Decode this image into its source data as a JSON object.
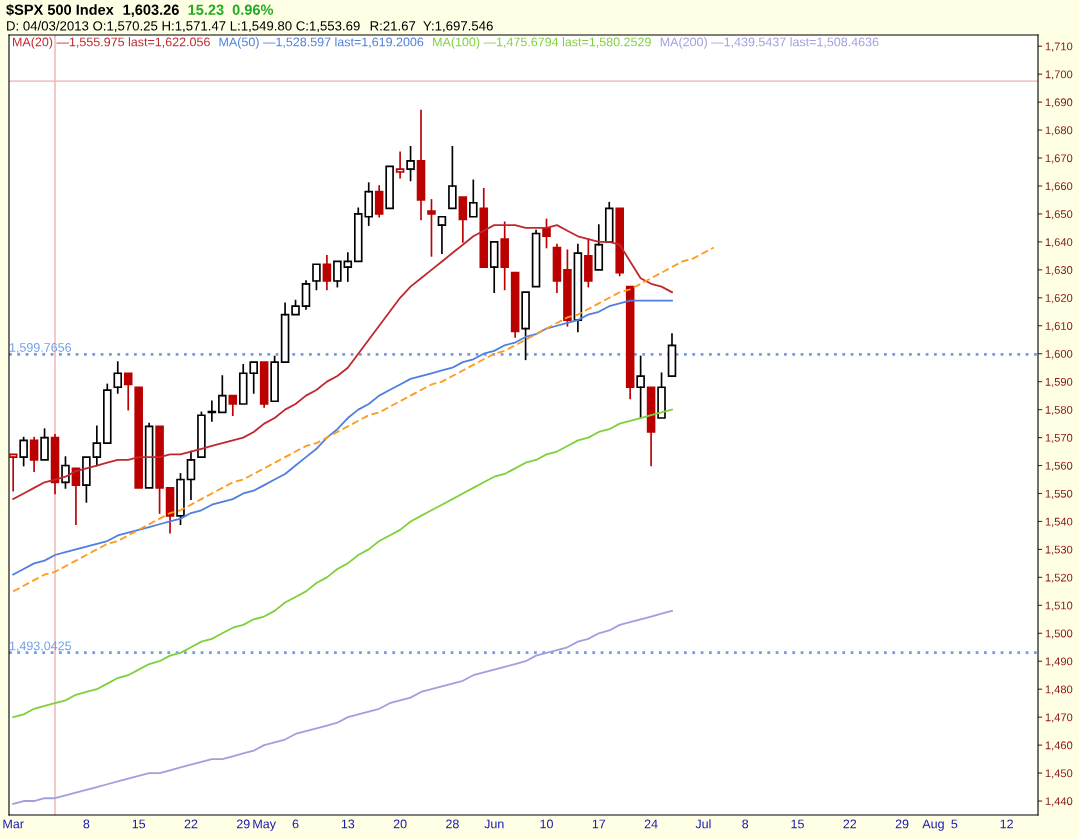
{
  "chart_data": {
    "type": "candlestick",
    "title": "$SPX 500 Index",
    "subtitle": "1,603.26",
    "annotations": [
      "15.23",
      "0.96%",
      "D: 04/03/2013 O:1,570.25 H:1,571.47 L:1,549.80 C:1,553.69",
      "R:21.67  Y:1,697.546"
    ],
    "categories": [
      "Mar",
      null,
      null,
      null,
      null,
      null,
      null,
      "8",
      null,
      null,
      null,
      null,
      "15",
      null,
      null,
      null,
      null,
      "22",
      null,
      null,
      null,
      null,
      "29",
      null,
      "May",
      null,
      null,
      "6",
      null,
      null,
      null,
      null,
      "13",
      null,
      null,
      null,
      null,
      "20",
      null,
      null,
      null,
      null,
      "28",
      null,
      null,
      null,
      "Jun",
      null,
      null,
      null,
      null,
      "10",
      null,
      null,
      null,
      null,
      "17",
      null,
      null,
      null,
      null,
      "24",
      null,
      null,
      null,
      null,
      "Jul",
      null,
      null,
      null,
      "8",
      null,
      null,
      null,
      null,
      "15",
      null,
      null,
      null,
      null,
      "22",
      null,
      null,
      null,
      null,
      "29",
      null,
      null,
      "Aug",
      null,
      "5",
      null,
      null,
      null,
      null,
      "12",
      null,
      null,
      null
    ],
    "ohlc": [
      [
        1563,
        1564,
        1551,
        1564
      ],
      [
        1563,
        1570,
        1560,
        1569
      ],
      [
        1569,
        1570,
        1558,
        1562
      ],
      [
        1562,
        1573,
        1562,
        1570
      ],
      [
        1570,
        1571,
        1550,
        1554
      ],
      [
        1554,
        1563,
        1552,
        1560
      ],
      [
        1559,
        1559,
        1539,
        1553
      ],
      [
        1553,
        1563,
        1547,
        1563
      ],
      [
        1563,
        1574,
        1560,
        1568
      ],
      [
        1568,
        1589,
        1568,
        1587
      ],
      [
        1588,
        1597,
        1586,
        1593
      ],
      [
        1593,
        1593,
        1580,
        1589
      ],
      [
        1588,
        1588,
        1552,
        1552
      ],
      [
        1552,
        1575,
        1552,
        1574
      ],
      [
        1574,
        1574,
        1543,
        1552
      ],
      [
        1552,
        1552,
        1536,
        1542
      ],
      [
        1542,
        1557,
        1539,
        1555
      ],
      [
        1555,
        1565,
        1548,
        1562
      ],
      [
        1563,
        1579,
        1563,
        1578
      ],
      [
        1579,
        1583,
        1576,
        1579
      ],
      [
        1579,
        1592,
        1579,
        1585
      ],
      [
        1585,
        1585,
        1578,
        1582
      ],
      [
        1582,
        1596,
        1582,
        1593
      ],
      [
        1593,
        1597,
        1586,
        1597
      ],
      [
        1597,
        1597,
        1581,
        1582
      ],
      [
        1583,
        1599,
        1583,
        1597
      ],
      [
        1597,
        1618,
        1597,
        1614
      ],
      [
        1614,
        1619,
        1614,
        1617
      ],
      [
        1617,
        1626,
        1616,
        1625
      ],
      [
        1626,
        1632,
        1623,
        1632
      ],
      [
        1632,
        1635,
        1623,
        1626
      ],
      [
        1626,
        1633,
        1624,
        1633
      ],
      [
        1631,
        1636,
        1626,
        1633
      ],
      [
        1633,
        1652,
        1633,
        1650
      ],
      [
        1649,
        1661,
        1646,
        1658
      ],
      [
        1658,
        1660,
        1649,
        1650
      ],
      [
        1652,
        1667,
        1652,
        1667
      ],
      [
        1665,
        1672,
        1663,
        1666
      ],
      [
        1666,
        1674,
        1662,
        1669
      ],
      [
        1669,
        1687,
        1648,
        1655
      ],
      [
        1651,
        1655,
        1635,
        1650
      ],
      [
        1646,
        1649,
        1636,
        1649
      ],
      [
        1652,
        1674,
        1652,
        1660
      ],
      [
        1656,
        1656,
        1640,
        1648
      ],
      [
        1649,
        1662,
        1649,
        1654
      ],
      [
        1652,
        1659,
        1631,
        1631
      ],
      [
        1631,
        1640,
        1622,
        1640
      ],
      [
        1641,
        1647,
        1623,
        1631
      ],
      [
        1629,
        1629,
        1606,
        1608
      ],
      [
        1609,
        1622,
        1598,
        1622
      ],
      [
        1624,
        1644,
        1624,
        1643
      ],
      [
        1645,
        1648,
        1638,
        1642
      ],
      [
        1638,
        1639,
        1622,
        1626
      ],
      [
        1630,
        1637,
        1610,
        1612
      ],
      [
        1612,
        1639,
        1608,
        1636
      ],
      [
        1635,
        1641,
        1624,
        1626
      ],
      [
        1630,
        1646,
        1630,
        1639
      ],
      [
        1640,
        1654,
        1640,
        1652
      ],
      [
        1652,
        1652,
        1628,
        1629
      ],
      [
        1624,
        1624,
        1584,
        1588
      ],
      [
        1588,
        1599,
        1577,
        1592
      ],
      [
        1588,
        1588,
        1560,
        1572
      ],
      [
        1577,
        1593,
        1577,
        1588
      ],
      [
        1592,
        1607,
        1592,
        1603
      ],
      null,
      null,
      null,
      null,
      null,
      null,
      null,
      null,
      null,
      null,
      null,
      null,
      null,
      null,
      null,
      null,
      null,
      null,
      null,
      null,
      null,
      null,
      null,
      null,
      null,
      null,
      null,
      null,
      null,
      null,
      null,
      null,
      null,
      null,
      null
    ],
    "colors": [
      "#bb0000",
      "#000000",
      "#bb0000",
      "#000000",
      "#bb0000",
      "#000000",
      "#bb0000",
      "#000000",
      "#000000",
      "#000000",
      "#000000",
      "#bb0000",
      "#bb0000",
      "#000000",
      "#bb0000",
      "#bb0000",
      "#000000",
      "#000000",
      "#000000",
      "#000000",
      "#000000",
      "#bb0000",
      "#000000",
      "#000000",
      "#bb0000",
      "#000000",
      "#000000",
      "#000000",
      "#000000",
      "#000000",
      "#bb0000",
      "#000000",
      "#000000",
      "#000000",
      "#000000",
      "#bb0000",
      "#000000",
      "#bb0000",
      "#000000",
      "#bb0000",
      "#bb0000",
      "#000000",
      "#000000",
      "#bb0000",
      "#000000",
      "#bb0000",
      "#000000",
      "#bb0000",
      "#bb0000",
      "#000000",
      "#000000",
      "#bb0000",
      "#bb0000",
      "#bb0000",
      "#000000",
      "#bb0000",
      "#000000",
      "#000000",
      "#bb0000",
      "#bb0000",
      "#000000",
      "#bb0000",
      "#000000",
      "#000000",
      "#000000",
      "#000000",
      "#000000",
      "#000000",
      "#000000",
      "#000000",
      "#000000",
      "#000000",
      "#000000",
      "#000000",
      "#000000",
      "#000000",
      "#000000",
      "#000000",
      "#000000",
      "#000000",
      "#000000",
      "#000000",
      "#000000",
      "#000000",
      "#000000",
      "#000000",
      "#000000",
      "#000000",
      "#000000",
      "#000000",
      "#000000",
      "#000000",
      "#000000",
      "#000000",
      "#000000",
      "#000000",
      "#000000",
      "#000000",
      "#000000"
    ],
    "series": [
      {
        "name": "MA(20) —1,555.975 last=1,622.056",
        "type": "line",
        "color": "#c0282e",
        "values": [
          1548,
          1550,
          1552,
          1554,
          1555,
          1556,
          1558,
          1559,
          1560,
          1561,
          1562,
          1562,
          1563,
          1563,
          1563,
          1564,
          1564,
          1565,
          1566,
          1567,
          1568,
          1569,
          1570,
          1572,
          1575,
          1577,
          1580,
          1582,
          1585,
          1587,
          1590,
          1592,
          1595,
          1600,
          1605,
          1610,
          1615,
          1620,
          1624,
          1627,
          1630,
          1633,
          1636,
          1639,
          1642,
          1644,
          1646,
          1646,
          1646,
          1645,
          1645,
          1645,
          1646,
          1644,
          1642,
          1641,
          1640,
          1640,
          1639,
          1633,
          1627,
          1625,
          1624,
          1622,
          null,
          null,
          null,
          null,
          null,
          null,
          null,
          null,
          null,
          null,
          null,
          null,
          null,
          null,
          null,
          null,
          null,
          null,
          null,
          null,
          null,
          null,
          null,
          null,
          null,
          null,
          null,
          null,
          null,
          null,
          null,
          null,
          null,
          null,
          null
        ]
      },
      {
        "name": "MA(50) —1,528.597 last=1,619.2006",
        "type": "line",
        "color": "#4f7fdf",
        "values": [
          1521,
          1523,
          1525,
          1526,
          1528,
          1529,
          1530,
          1531,
          1532,
          1533,
          1535,
          1536,
          1537,
          1538,
          1539,
          1540,
          1541,
          1543,
          1544,
          1546,
          1547,
          1548,
          1550,
          1551,
          1553,
          1555,
          1557,
          1560,
          1563,
          1566,
          1570,
          1573,
          1577,
          1580,
          1582,
          1585,
          1587,
          1589,
          1591,
          1592,
          1593,
          1594,
          1595,
          1597,
          1598,
          1600,
          1601,
          1603,
          1604,
          1606,
          1607,
          1609,
          1610,
          1611,
          1612,
          1614,
          1615,
          1617,
          1618,
          1619,
          1619,
          1619,
          1619,
          1619,
          null,
          null,
          null,
          null,
          null,
          null,
          null,
          null,
          null,
          null,
          null,
          null,
          null,
          null,
          null,
          null,
          null,
          null,
          null,
          null,
          null,
          null,
          null,
          null,
          null,
          null,
          null,
          null,
          null,
          null,
          null,
          null,
          null,
          null,
          null
        ]
      },
      {
        "name": "MA(100) —1,475.6794 last=1,580.2529",
        "type": "line",
        "color": "#7fd13b",
        "values": [
          1470,
          1471,
          1473,
          1474,
          1475,
          1476,
          1478,
          1479,
          1480,
          1482,
          1484,
          1485,
          1487,
          1489,
          1490,
          1492,
          1493,
          1495,
          1497,
          1498,
          1500,
          1502,
          1503,
          1505,
          1506,
          1508,
          1511,
          1513,
          1515,
          1518,
          1520,
          1523,
          1525,
          1528,
          1530,
          1533,
          1535,
          1537,
          1540,
          1542,
          1544,
          1546,
          1548,
          1550,
          1552,
          1554,
          1556,
          1557,
          1559,
          1561,
          1562,
          1564,
          1565,
          1567,
          1569,
          1570,
          1572,
          1573,
          1575,
          1576,
          1577,
          1578,
          1579,
          1580,
          null,
          null,
          null,
          null,
          null,
          null,
          null,
          null,
          null,
          null,
          null,
          null,
          null,
          null,
          null,
          null,
          null,
          null,
          null,
          null,
          null,
          null,
          null,
          null,
          null,
          null,
          null,
          null,
          null,
          null,
          null,
          null,
          null,
          null,
          null
        ]
      },
      {
        "name": "MA(200) —1,439.5437 last=1,508.4636",
        "type": "line",
        "color": "#a09fe0",
        "values": [
          1439,
          1440,
          1440,
          1441,
          1441,
          1442,
          1443,
          1444,
          1445,
          1446,
          1447,
          1448,
          1449,
          1450,
          1450,
          1451,
          1452,
          1453,
          1454,
          1455,
          1455,
          1456,
          1457,
          1458,
          1460,
          1461,
          1462,
          1464,
          1465,
          1466,
          1467,
          1468,
          1470,
          1471,
          1472,
          1473,
          1475,
          1476,
          1477,
          1479,
          1480,
          1481,
          1482,
          1483,
          1485,
          1486,
          1487,
          1488,
          1489,
          1490,
          1492,
          1493,
          1494,
          1495,
          1497,
          1498,
          1500,
          1501,
          1503,
          1504,
          1505,
          1506,
          1507,
          1508,
          null,
          null,
          null,
          null,
          null,
          null,
          null,
          null,
          null,
          null,
          null,
          null,
          null,
          null,
          null,
          null,
          null,
          null,
          null,
          null,
          null,
          null,
          null,
          null,
          null,
          null,
          null,
          null,
          null,
          null,
          null,
          null,
          null,
          null,
          null
        ]
      },
      {
        "type": "line",
        "color": "#ff9a1f",
        "line_style": "dashed",
        "values": [
          1515,
          1517,
          1519,
          1521,
          1522,
          1524,
          1526,
          1528,
          1530,
          1532,
          1533,
          1535,
          1537,
          1539,
          1541,
          1543,
          1544,
          1546,
          1548,
          1550,
          1552,
          1554,
          1555,
          1557,
          1559,
          1561,
          1563,
          1565,
          1567,
          1568,
          1570,
          1572,
          1574,
          1576,
          1578,
          1579,
          1581,
          1583,
          1585,
          1587,
          1589,
          1590,
          1592,
          1594,
          1596,
          1598,
          1600,
          1601,
          1603,
          1605,
          1607,
          1609,
          1611,
          1613,
          1614,
          1616,
          1618,
          1620,
          1622,
          1623,
          1625,
          1627,
          1629,
          1631,
          1633,
          1634,
          1636,
          1638,
          null,
          null,
          null,
          null,
          null,
          null,
          null,
          null,
          null,
          null,
          null,
          null,
          null,
          null,
          null,
          null,
          null,
          null,
          null,
          null,
          null,
          null,
          null,
          null,
          null,
          null,
          null,
          null,
          null,
          null,
          null
        ]
      }
    ],
    "ref_lines": [
      {
        "axis": "y",
        "value": 1599.7656,
        "label": "1,599.7656",
        "color": "#6f9fe8",
        "line_style": "dotted"
      },
      {
        "axis": "y",
        "value": 1493.0425,
        "label": "1,493.0425",
        "color": "#6f9fe8",
        "line_style": "dotted"
      },
      {
        "axis": "y",
        "value": 1697.5,
        "color": "#f0b0b0",
        "line_style": "solid"
      }
    ],
    "ylim": [
      1435,
      1714
    ],
    "yticks": [
      {
        "value": 1440,
        "label": "1,440"
      },
      {
        "value": 1450,
        "label": "1,450"
      },
      {
        "value": 1460,
        "label": "1,460"
      },
      {
        "value": 1470,
        "label": "1,470"
      },
      {
        "value": 1480,
        "label": "1,480"
      },
      {
        "value": 1490,
        "label": "1,490"
      },
      {
        "value": 1500,
        "label": "1,500"
      },
      {
        "value": 1510,
        "label": "1,510"
      },
      {
        "value": 1520,
        "label": "1,520"
      },
      {
        "value": 1530,
        "label": "1,530"
      },
      {
        "value": 1540,
        "label": "1,540"
      },
      {
        "value": 1550,
        "label": "1,550"
      },
      {
        "value": 1560,
        "label": "1,560"
      },
      {
        "value": 1570,
        "label": "1,570"
      },
      {
        "value": 1580,
        "label": "1,580"
      },
      {
        "value": 1590,
        "label": "1,590"
      },
      {
        "value": 1600,
        "label": "1,600"
      },
      {
        "value": 1610,
        "label": "1,610"
      },
      {
        "value": 1620,
        "label": "1,620"
      },
      {
        "value": 1630,
        "label": "1,630"
      },
      {
        "value": 1640,
        "label": "1,640"
      },
      {
        "value": 1650,
        "label": "1,650"
      },
      {
        "value": 1660,
        "label": "1,660"
      },
      {
        "value": 1670,
        "label": "1,670"
      },
      {
        "value": 1680,
        "label": "1,680"
      },
      {
        "value": 1690,
        "label": "1,690"
      },
      {
        "value": 1700,
        "label": "1,700"
      },
      {
        "value": 1710,
        "label": "1,710"
      }
    ],
    "legend": "top left"
  }
}
